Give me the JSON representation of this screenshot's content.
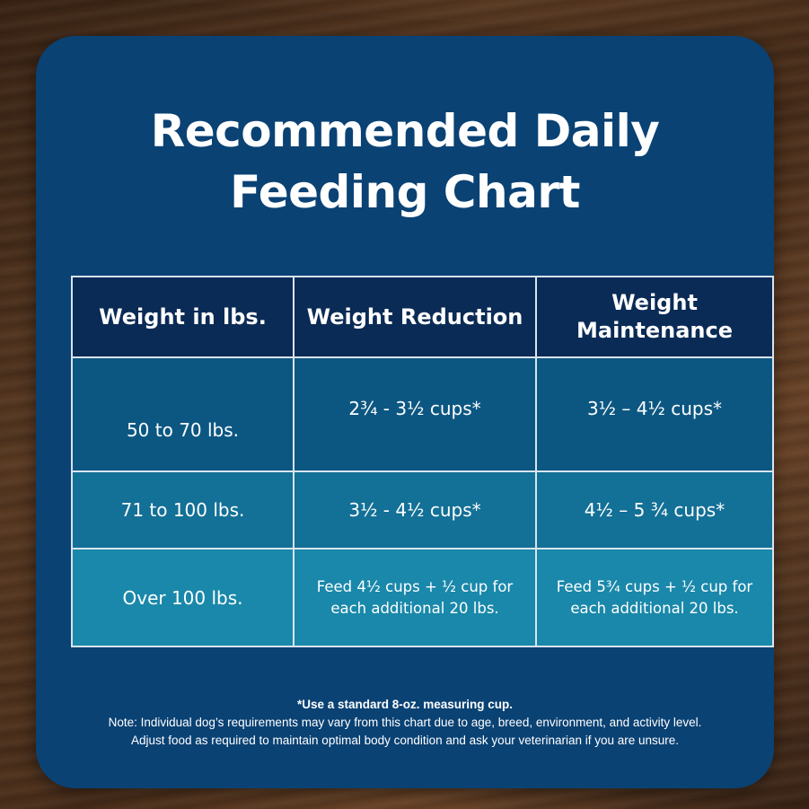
{
  "title": {
    "line1": "Recommended Daily",
    "line2": "Feeding Chart"
  },
  "table": {
    "headers": [
      "Weight in lbs.",
      "Weight Reduction",
      "Weight Maintenance"
    ],
    "rows": [
      {
        "weight": "50 to 70 lbs.",
        "reduction": "2¾ - 3½ cups*",
        "maintenance": "3½ – 4½ cups*"
      },
      {
        "weight": "71 to 100 lbs.",
        "reduction": "3½ - 4½ cups*",
        "maintenance": "4½ – 5 ¾ cups*"
      },
      {
        "weight": "Over 100 lbs.",
        "reduction_line1": "Feed 4½ cups + ½ cup for",
        "reduction_line2": "each additional 20 lbs.",
        "maintenance_line1": "Feed 5¾ cups + ½ cup for",
        "maintenance_line2": "each additional 20 lbs."
      }
    ]
  },
  "footnote": {
    "measure": "*Use a standard 8-oz. measuring cup.",
    "note_line1": "Note: Individual dog’s requirements may vary from this chart due to age, breed, environment, and activity level.",
    "note_line2": "Adjust food as required to maintain optimal body condition and ask your veterinarian if you are unsure."
  },
  "colors": {
    "card_background": "#0a4274",
    "header_row": "#0a2b55",
    "row1": "#0c5782",
    "row2": "#137096",
    "row3": "#1a88aa",
    "text": "#ffffff"
  }
}
